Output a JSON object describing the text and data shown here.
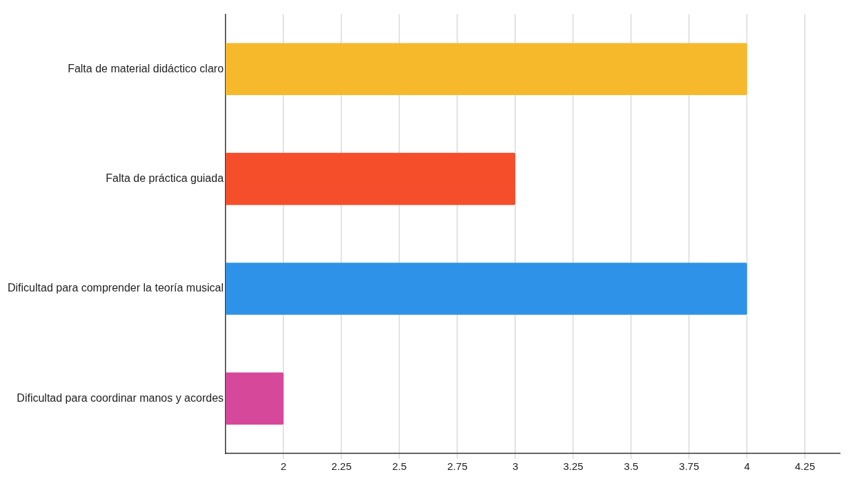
{
  "chart_data": {
    "type": "bar",
    "orientation": "horizontal",
    "categories": [
      "Falta de material didáctico claro",
      "Falta de práctica guiada",
      "Dificultad para comprender la teoría musical",
      "Dificultad para coordinar manos y acordes"
    ],
    "values": [
      4,
      3,
      4,
      2
    ],
    "colors": [
      "#f6b92b",
      "#f44e2a",
      "#2e93e8",
      "#d6489a"
    ],
    "xlim": [
      1.75,
      4.4
    ],
    "xticks": [
      2,
      2.25,
      2.5,
      2.75,
      3,
      3.25,
      3.5,
      3.75,
      4,
      4.25
    ],
    "grid": "x",
    "legend": false
  }
}
